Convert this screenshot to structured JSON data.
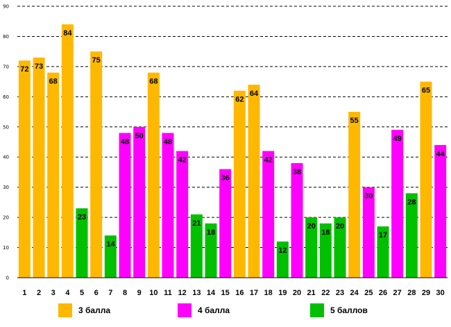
{
  "chart_data": {
    "type": "bar",
    "title": "",
    "xlabel": "",
    "ylabel": "",
    "ylim": [
      0,
      90
    ],
    "yticks": [
      0,
      10,
      20,
      30,
      40,
      50,
      60,
      70,
      80,
      90
    ],
    "grid": "horizontal dashed",
    "categories": [
      "1",
      "2",
      "3",
      "4",
      "5",
      "6",
      "7",
      "8",
      "9",
      "10",
      "11",
      "12",
      "13",
      "14",
      "15",
      "16",
      "17",
      "18",
      "19",
      "20",
      "21",
      "22",
      "23",
      "24",
      "25",
      "26",
      "27",
      "28",
      "29",
      "30"
    ],
    "values": [
      72,
      73,
      68,
      84,
      23,
      75,
      14,
      48,
      50,
      68,
      48,
      42,
      21,
      18,
      36,
      62,
      64,
      42,
      12,
      38,
      20,
      18,
      20,
      55,
      30,
      17,
      49,
      28,
      65,
      44
    ],
    "groups": [
      "3 балла",
      "3 балла",
      "3 балла",
      "3 балла",
      "5 баллов",
      "3 балла",
      "5 баллов",
      "4 балла",
      "4 балла",
      "3 балла",
      "4 балла",
      "4 балла",
      "5 баллов",
      "5 баллов",
      "4 балла",
      "3 балла",
      "3 балла",
      "4 балла",
      "5 баллов",
      "4 балла",
      "5 баллов",
      "5 баллов",
      "5 баллов",
      "3 балла",
      "4 балла",
      "5 баллов",
      "4 балла",
      "5 баллов",
      "3 балла",
      "4 балла"
    ],
    "legend": [
      {
        "name": "3 балла",
        "color": "#FFB800"
      },
      {
        "name": "4 балла",
        "color": "#FF00FF"
      },
      {
        "name": "5 баллов",
        "color": "#00C000"
      }
    ],
    "legend_position": "bottom"
  }
}
